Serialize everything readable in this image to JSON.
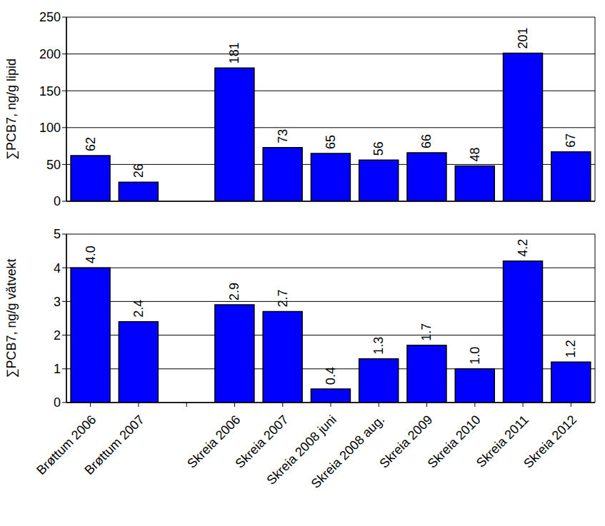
{
  "chart_data": [
    {
      "type": "bar",
      "ylabel": "∑PCB7, ng/g lipid",
      "categories": [
        "Brøttum 2006",
        "Brøttum 2007",
        null,
        "Skreia 2006",
        "Skreia 2007",
        "Skreia 2008 juni",
        "Skreia 2008 aug.",
        "Skreia 2009",
        "Skreia 2010",
        "Skreia 2011",
        "Skreia 2012"
      ],
      "values": [
        62,
        26,
        null,
        181,
        73,
        65,
        56,
        66,
        48,
        201,
        67
      ],
      "color": "#0000ff",
      "ylim": [
        0,
        250
      ],
      "yticks": [
        0,
        50,
        100,
        150,
        200,
        250
      ],
      "grid": true,
      "data_labels": true,
      "tick_labels": "y"
    },
    {
      "type": "bar",
      "ylabel": "∑PCB7, ng/g våtvekt",
      "categories": [
        "Brøttum 2006",
        "Brøttum 2007",
        null,
        "Skreia 2006",
        "Skreia 2007",
        "Skreia 2008 juni",
        "Skreia 2008 aug.",
        "Skreia 2009",
        "Skreia 2010",
        "Skreia 2011",
        "Skreia 2012"
      ],
      "values": [
        4.0,
        2.4,
        null,
        2.9,
        2.7,
        0.4,
        1.3,
        1.7,
        1.0,
        4.2,
        1.2
      ],
      "value_labels": [
        "4.0",
        "2.4",
        null,
        "2.9",
        "2.7",
        "0.4",
        "1.3",
        "1.7",
        "1.0",
        "4.2",
        "1.2"
      ],
      "color": "#0000ff",
      "ylim": [
        0,
        5
      ],
      "yticks": [
        0,
        1,
        2,
        3,
        4,
        5
      ],
      "grid": true,
      "data_labels": true
    }
  ]
}
